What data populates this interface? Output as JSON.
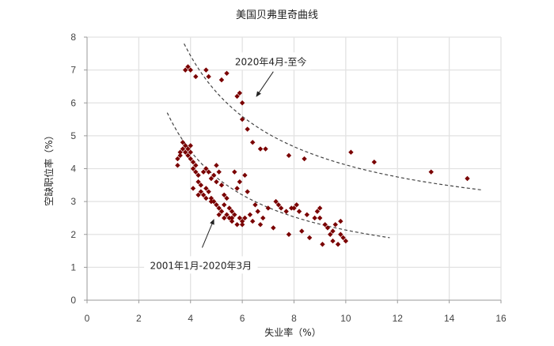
{
  "chart_data": {
    "type": "scatter",
    "title": "美国贝弗里奇曲线",
    "xlabel": "失业率（%）",
    "ylabel": "空缺职位率（%）",
    "xlim": [
      0,
      16
    ],
    "ylim": [
      0,
      8
    ],
    "xticks": [
      0,
      2,
      4,
      6,
      8,
      10,
      12,
      14,
      16
    ],
    "yticks": [
      0,
      1,
      2,
      3,
      4,
      5,
      6,
      7,
      8
    ],
    "grid": true,
    "legend": null,
    "marker_color": "#7a0000",
    "series": [
      {
        "name": "2001年1月-2020年3月",
        "points": [
          [
            3.5,
            4.1
          ],
          [
            3.5,
            4.3
          ],
          [
            3.6,
            4.4
          ],
          [
            3.6,
            4.5
          ],
          [
            3.7,
            4.6
          ],
          [
            3.7,
            4.8
          ],
          [
            3.8,
            4.5
          ],
          [
            3.8,
            4.7
          ],
          [
            3.9,
            4.6
          ],
          [
            3.9,
            4.4
          ],
          [
            4.0,
            4.7
          ],
          [
            4.0,
            4.5
          ],
          [
            4.0,
            4.3
          ],
          [
            4.1,
            4.2
          ],
          [
            4.1,
            4.0
          ],
          [
            4.2,
            4.1
          ],
          [
            4.2,
            3.9
          ],
          [
            4.3,
            3.8
          ],
          [
            4.3,
            3.6
          ],
          [
            4.4,
            3.5
          ],
          [
            4.4,
            3.3
          ],
          [
            4.5,
            3.9
          ],
          [
            4.5,
            3.2
          ],
          [
            4.6,
            3.4
          ],
          [
            4.6,
            4.0
          ],
          [
            4.7,
            3.9
          ],
          [
            4.7,
            3.3
          ],
          [
            4.8,
            3.7
          ],
          [
            4.8,
            3.1
          ],
          [
            4.9,
            3.8
          ],
          [
            4.9,
            3.0
          ],
          [
            5.0,
            4.1
          ],
          [
            5.0,
            3.6
          ],
          [
            5.0,
            2.9
          ],
          [
            5.1,
            3.9
          ],
          [
            5.1,
            2.8
          ],
          [
            5.2,
            3.5
          ],
          [
            5.2,
            2.7
          ],
          [
            5.3,
            3.2
          ],
          [
            5.3,
            2.9
          ],
          [
            5.4,
            2.6
          ],
          [
            5.4,
            3.1
          ],
          [
            5.5,
            2.8
          ],
          [
            5.5,
            2.5
          ],
          [
            5.6,
            2.7
          ],
          [
            5.6,
            2.4
          ],
          [
            5.7,
            3.9
          ],
          [
            5.7,
            2.6
          ],
          [
            5.8,
            2.3
          ],
          [
            5.8,
            3.4
          ],
          [
            5.9,
            2.5
          ],
          [
            5.9,
            3.6
          ],
          [
            6.0,
            2.4
          ],
          [
            6.0,
            2.3
          ],
          [
            6.1,
            3.8
          ],
          [
            6.1,
            2.5
          ],
          [
            6.2,
            3.3
          ],
          [
            6.3,
            2.6
          ],
          [
            6.4,
            2.4
          ],
          [
            6.5,
            2.9
          ],
          [
            6.6,
            2.7
          ],
          [
            6.7,
            2.3
          ],
          [
            6.8,
            2.5
          ],
          [
            7.0,
            2.8
          ],
          [
            7.2,
            2.2
          ],
          [
            7.3,
            3.0
          ],
          [
            7.4,
            2.9
          ],
          [
            7.5,
            2.8
          ],
          [
            7.7,
            2.7
          ],
          [
            7.8,
            2.0
          ],
          [
            7.9,
            2.8
          ],
          [
            8.0,
            2.8
          ],
          [
            8.1,
            2.9
          ],
          [
            8.2,
            2.7
          ],
          [
            8.3,
            2.1
          ],
          [
            8.5,
            2.6
          ],
          [
            8.6,
            1.9
          ],
          [
            8.8,
            2.5
          ],
          [
            8.9,
            2.7
          ],
          [
            9.0,
            2.8
          ],
          [
            9.0,
            2.5
          ],
          [
            9.1,
            1.7
          ],
          [
            9.2,
            2.3
          ],
          [
            9.3,
            2.2
          ],
          [
            9.4,
            2.0
          ],
          [
            9.5,
            2.1
          ],
          [
            9.5,
            1.8
          ],
          [
            9.6,
            2.3
          ],
          [
            9.7,
            1.7
          ],
          [
            9.8,
            2.0
          ],
          [
            9.8,
            2.4
          ],
          [
            9.9,
            1.9
          ],
          [
            10.0,
            1.8
          ],
          [
            4.1,
            3.4
          ],
          [
            4.3,
            3.2
          ],
          [
            4.6,
            3.1
          ],
          [
            4.8,
            3.0
          ],
          [
            5.1,
            2.6
          ],
          [
            5.3,
            2.5
          ],
          [
            5.6,
            2.5
          ]
        ],
        "trendline": {
          "style": "dashed",
          "from": [
            3.1,
            5.7
          ],
          "to": [
            11.7,
            1.9
          ]
        }
      },
      {
        "name": "2020年4月-至今",
        "points": [
          [
            3.8,
            7.0
          ],
          [
            3.9,
            7.1
          ],
          [
            4.0,
            7.0
          ],
          [
            4.2,
            6.8
          ],
          [
            4.6,
            7.0
          ],
          [
            4.7,
            6.8
          ],
          [
            5.2,
            6.7
          ],
          [
            5.4,
            6.9
          ],
          [
            5.8,
            6.2
          ],
          [
            5.9,
            6.3
          ],
          [
            6.0,
            6.0
          ],
          [
            6.0,
            5.5
          ],
          [
            6.2,
            5.2
          ],
          [
            6.4,
            4.8
          ],
          [
            6.7,
            4.6
          ],
          [
            6.9,
            4.6
          ],
          [
            7.8,
            4.4
          ],
          [
            8.4,
            4.3
          ],
          [
            10.2,
            4.5
          ],
          [
            11.1,
            4.2
          ],
          [
            13.3,
            3.9
          ],
          [
            14.7,
            3.7
          ]
        ],
        "trendline": {
          "style": "dashed",
          "from": [
            3.75,
            7.8
          ],
          "to": [
            15.3,
            3.35
          ]
        }
      }
    ],
    "annotations": [
      {
        "text": "2020年4月-至今",
        "label_pos": [
          7.1,
          7.2
        ],
        "arrow_from": [
          7.2,
          6.95
        ],
        "arrow_to": [
          6.55,
          6.2
        ]
      },
      {
        "text": "2001年1月-2020年3月",
        "label_pos": [
          4.4,
          1.0
        ],
        "arrow_from": [
          4.45,
          1.6
        ],
        "arrow_to": [
          4.9,
          2.45
        ]
      }
    ]
  }
}
